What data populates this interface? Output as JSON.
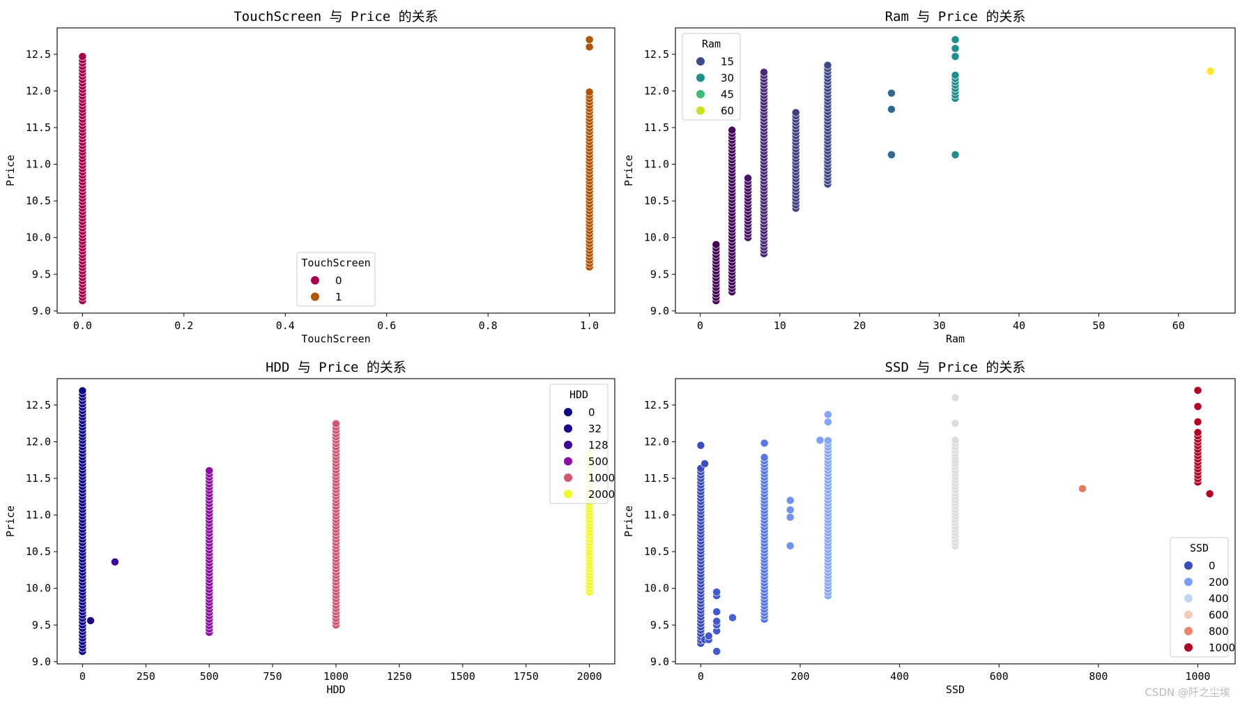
{
  "watermark": "CSDN @阡之尘埃",
  "chart_data": [
    {
      "type": "scatter",
      "title": "TouchScreen 与 Price 的关系",
      "xlabel": "TouchScreen",
      "ylabel": "Price",
      "xlim": [
        -0.05,
        1.05
      ],
      "ylim": [
        8.97,
        12.86
      ],
      "xticks": [
        0,
        0.2,
        0.4,
        0.6,
        0.8,
        1.0
      ],
      "xtick_labels": [
        "0.0",
        "0.2",
        "0.4",
        "0.6",
        "0.8",
        "1.0"
      ],
      "yticks": [
        9.0,
        9.5,
        10.0,
        10.5,
        11.0,
        11.5,
        12.0,
        12.5
      ],
      "ytick_labels": [
        "9.0",
        "9.5",
        "10.0",
        "10.5",
        "11.0",
        "11.5",
        "12.0",
        "12.5"
      ],
      "legend": {
        "title": "TouchScreen",
        "placement": "lower-center",
        "entries": [
          {
            "label": "0",
            "color": "#a6004d"
          },
          {
            "label": "1",
            "color": "#b55400"
          }
        ]
      },
      "series": [
        {
          "name": "0",
          "color": "#a6004d",
          "x_values": [
            0
          ],
          "y_min": 9.14,
          "y_max": 12.47,
          "y_step": 0.045,
          "extra_y": []
        },
        {
          "name": "1",
          "color": "#b55400",
          "x_values": [
            1
          ],
          "y_min": 9.6,
          "y_max": 12.02,
          "y_step": 0.045,
          "extra_y": [
            12.6,
            12.7
          ]
        }
      ]
    },
    {
      "type": "scatter",
      "title": "Ram 与 Price 的关系",
      "xlabel": "Ram",
      "ylabel": "Price",
      "xlim": [
        -3.1,
        67.1
      ],
      "ylim": [
        8.97,
        12.86
      ],
      "xticks": [
        0,
        10,
        20,
        30,
        40,
        50,
        60
      ],
      "xtick_labels": [
        "0",
        "10",
        "20",
        "30",
        "40",
        "50",
        "60"
      ],
      "yticks": [
        9.0,
        9.5,
        10.0,
        10.5,
        11.0,
        11.5,
        12.0,
        12.5
      ],
      "ytick_labels": [
        "9.0",
        "9.5",
        "10.0",
        "10.5",
        "11.0",
        "11.5",
        "12.0",
        "12.5"
      ],
      "legend": {
        "title": "Ram",
        "placement": "upper-left",
        "entries": [
          {
            "label": "15",
            "color": "#3e4989"
          },
          {
            "label": "30",
            "color": "#21908d"
          },
          {
            "label": "45",
            "color": "#3fbc73"
          },
          {
            "label": "60",
            "color": "#cddf1e"
          }
        ]
      },
      "series": [
        {
          "color": "#440154",
          "x_values": [
            2
          ],
          "y_min": 9.14,
          "y_max": 9.93,
          "y_step": 0.045,
          "extra_y": []
        },
        {
          "color": "#46085c",
          "x_values": [
            4
          ],
          "y_min": 9.26,
          "y_max": 11.47,
          "y_step": 0.045,
          "extra_y": []
        },
        {
          "color": "#471365",
          "x_values": [
            6
          ],
          "y_min": 10.0,
          "y_max": 10.85,
          "y_step": 0.045,
          "extra_y": []
        },
        {
          "color": "#472a7a",
          "x_values": [
            8
          ],
          "y_min": 9.78,
          "y_max": 12.27,
          "y_step": 0.045,
          "extra_y": []
        },
        {
          "color": "#433d84",
          "x_values": [
            12
          ],
          "y_min": 10.4,
          "y_max": 11.72,
          "y_step": 0.045,
          "extra_y": []
        },
        {
          "color": "#3e4989",
          "x_values": [
            16
          ],
          "y_min": 10.73,
          "y_max": 12.37,
          "y_step": 0.045,
          "extra_y": []
        },
        {
          "color": "#31688e",
          "x_values": [
            24
          ],
          "y_min": null,
          "y_max": null,
          "y_step": 0.045,
          "extra_y": [
            11.13,
            11.75,
            11.97
          ]
        },
        {
          "color": "#21908d",
          "x_values": [
            32
          ],
          "y_min": 11.9,
          "y_max": 12.25,
          "y_step": 0.045,
          "extra_y": [
            11.13,
            12.47,
            12.58,
            12.7
          ]
        },
        {
          "color": "#fde725",
          "x_values": [
            64
          ],
          "y_min": null,
          "y_max": null,
          "y_step": 0.045,
          "extra_y": [
            12.27
          ]
        }
      ]
    },
    {
      "type": "scatter",
      "title": "HDD 与 Price 的关系",
      "xlabel": "HDD",
      "ylabel": "Price",
      "xlim": [
        -100,
        2100
      ],
      "ylim": [
        8.97,
        12.86
      ],
      "xticks": [
        0,
        250,
        500,
        750,
        1000,
        1250,
        1500,
        1750,
        2000
      ],
      "xtick_labels": [
        "0",
        "250",
        "500",
        "750",
        "1000",
        "1250",
        "1500",
        "1750",
        "2000"
      ],
      "yticks": [
        9.0,
        9.5,
        10.0,
        10.5,
        11.0,
        11.5,
        12.0,
        12.5
      ],
      "ytick_labels": [
        "9.0",
        "9.5",
        "10.0",
        "10.5",
        "11.0",
        "11.5",
        "12.0",
        "12.5"
      ],
      "legend": {
        "title": "HDD",
        "placement": "upper-right",
        "entries": [
          {
            "label": "0",
            "color": "#0d0887"
          },
          {
            "label": "32",
            "color": "#1b068d"
          },
          {
            "label": "128",
            "color": "#3d049b"
          },
          {
            "label": "500",
            "color": "#8f0da4"
          },
          {
            "label": "1000",
            "color": "#d5546e"
          },
          {
            "label": "2000",
            "color": "#f0f921"
          }
        ]
      },
      "series": [
        {
          "name": "0",
          "color": "#0d0887",
          "x_values": [
            0
          ],
          "y_min": 9.14,
          "y_max": 12.7,
          "y_step": 0.045,
          "extra_y": []
        },
        {
          "name": "32",
          "color": "#1b068d",
          "x_values": [
            32
          ],
          "y_min": null,
          "y_max": null,
          "y_step": 0.045,
          "extra_y": [
            9.56
          ]
        },
        {
          "name": "128",
          "color": "#3d049b",
          "x_values": [
            128
          ],
          "y_min": null,
          "y_max": null,
          "y_step": 0.045,
          "extra_y": [
            10.36
          ]
        },
        {
          "name": "500",
          "color": "#8f0da4",
          "x_values": [
            500
          ],
          "y_min": 9.4,
          "y_max": 11.63,
          "y_step": 0.045,
          "extra_y": []
        },
        {
          "name": "1000",
          "color": "#d5546e",
          "x_values": [
            1000
          ],
          "y_min": 9.5,
          "y_max": 12.25,
          "y_step": 0.045,
          "extra_y": []
        },
        {
          "name": "2000",
          "color": "#f0f921",
          "x_values": [
            2000
          ],
          "y_min": 9.95,
          "y_max": 11.85,
          "y_step": 0.045,
          "extra_y": []
        }
      ]
    },
    {
      "type": "scatter",
      "title": "SSD 与 Price 的关系",
      "xlabel": "SSD",
      "ylabel": "Price",
      "xlim": [
        -51,
        1075
      ],
      "ylim": [
        8.97,
        12.86
      ],
      "xticks": [
        0,
        200,
        400,
        600,
        800,
        1000
      ],
      "xtick_labels": [
        "0",
        "200",
        "400",
        "600",
        "800",
        "1000"
      ],
      "yticks": [
        9.0,
        9.5,
        10.0,
        10.5,
        11.0,
        11.5,
        12.0,
        12.5
      ],
      "ytick_labels": [
        "9.0",
        "9.5",
        "10.0",
        "10.5",
        "11.0",
        "11.5",
        "12.0",
        "12.5"
      ],
      "legend": {
        "title": "SSD",
        "placement": "lower-right",
        "entries": [
          {
            "label": "0",
            "color": "#3b4cc0"
          },
          {
            "label": "200",
            "color": "#7b9ff9"
          },
          {
            "label": "400",
            "color": "#c0d4f5"
          },
          {
            "label": "600",
            "color": "#f2cbb7"
          },
          {
            "label": "800",
            "color": "#ee8468"
          },
          {
            "label": "1000",
            "color": "#b40426"
          }
        ]
      },
      "series": [
        {
          "color": "#3b4cc0",
          "x_values": [
            0
          ],
          "y_min": 9.25,
          "y_max": 11.65,
          "y_step": 0.045,
          "extra_y": [
            11.95
          ]
        },
        {
          "color": "#3d50c3",
          "x_values": [
            8
          ],
          "y_min": null,
          "y_max": null,
          "y_step": 0.045,
          "extra_y": [
            11.7,
            9.3
          ]
        },
        {
          "color": "#4358cb",
          "x_values": [
            16
          ],
          "y_min": null,
          "y_max": null,
          "y_step": 0.045,
          "extra_y": [
            9.3,
            9.35
          ]
        },
        {
          "color": "#445acc",
          "x_values": [
            32
          ],
          "y_min": null,
          "y_max": null,
          "y_step": 0.045,
          "extra_y": [
            9.14,
            9.42,
            9.5,
            9.55,
            9.68,
            9.9,
            9.95
          ]
        },
        {
          "color": "#4a63d3",
          "x_values": [
            64
          ],
          "y_min": null,
          "y_max": null,
          "y_step": 0.045,
          "extra_y": [
            9.6
          ]
        },
        {
          "color": "#5977e3",
          "x_values": [
            128
          ],
          "y_min": 9.58,
          "y_max": 11.8,
          "y_step": 0.045,
          "extra_y": [
            11.98
          ]
        },
        {
          "color": "#6f92f3",
          "x_values": [
            180
          ],
          "y_min": null,
          "y_max": null,
          "y_step": 0.045,
          "extra_y": [
            10.58,
            10.97,
            11.07,
            11.2
          ]
        },
        {
          "color": "#7da0f9",
          "x_values": [
            240
          ],
          "y_min": null,
          "y_max": null,
          "y_step": 0.045,
          "extra_y": [
            12.02
          ]
        },
        {
          "color": "#85a8fc",
          "x_values": [
            256
          ],
          "y_min": 9.9,
          "y_max": 12.03,
          "y_step": 0.045,
          "extra_y": [
            12.27,
            12.37
          ]
        },
        {
          "color": "#dddcdc",
          "x_values": [
            512
          ],
          "y_min": 10.58,
          "y_max": 12.05,
          "y_step": 0.045,
          "extra_y": [
            12.25,
            12.6
          ]
        },
        {
          "color": "#e9785d",
          "x_values": [
            768
          ],
          "y_min": null,
          "y_max": null,
          "y_step": 0.045,
          "extra_y": [
            11.36
          ]
        },
        {
          "color": "#b40426",
          "x_values": [
            1000
          ],
          "y_min": 11.45,
          "y_max": 12.13,
          "y_step": 0.045,
          "extra_y": [
            12.27,
            12.48,
            12.7
          ]
        },
        {
          "color": "#b40426",
          "x_values": [
            1024
          ],
          "y_min": null,
          "y_max": null,
          "y_step": 0.045,
          "extra_y": [
            11.29
          ]
        }
      ]
    }
  ]
}
